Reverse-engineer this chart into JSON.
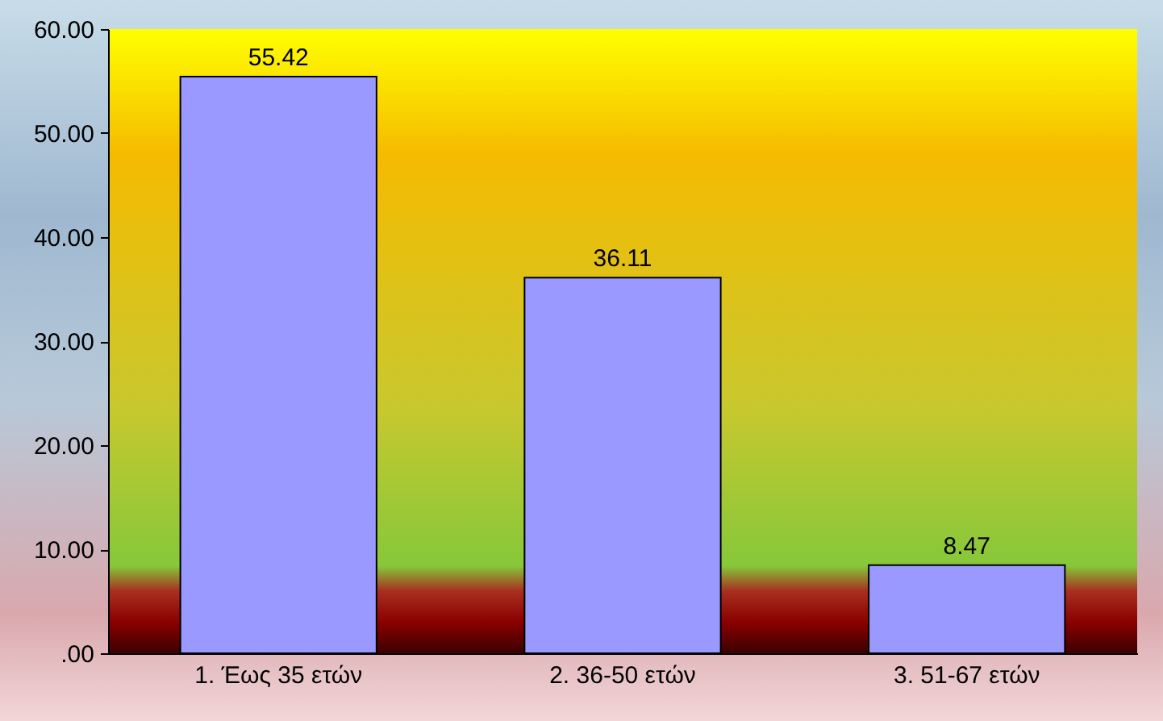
{
  "chart_data": {
    "type": "bar",
    "categories": [
      "1. Έως 35 ετών",
      "2. 36-50 ετών",
      "3. 51-67 ετών"
    ],
    "values": [
      55.42,
      36.11,
      8.47
    ],
    "color": "#9999ff",
    "data_labels": true,
    "grid": false,
    "ylim": [
      0,
      60
    ],
    "yticks": [
      {
        "value": 0,
        "label": ".00"
      },
      {
        "value": 10,
        "label": "10.00"
      },
      {
        "value": 20,
        "label": "20.00"
      },
      {
        "value": 30,
        "label": "30.00"
      },
      {
        "value": 40,
        "label": "40.00"
      },
      {
        "value": 50,
        "label": "50.00"
      },
      {
        "value": 60,
        "label": "60.00"
      }
    ]
  }
}
